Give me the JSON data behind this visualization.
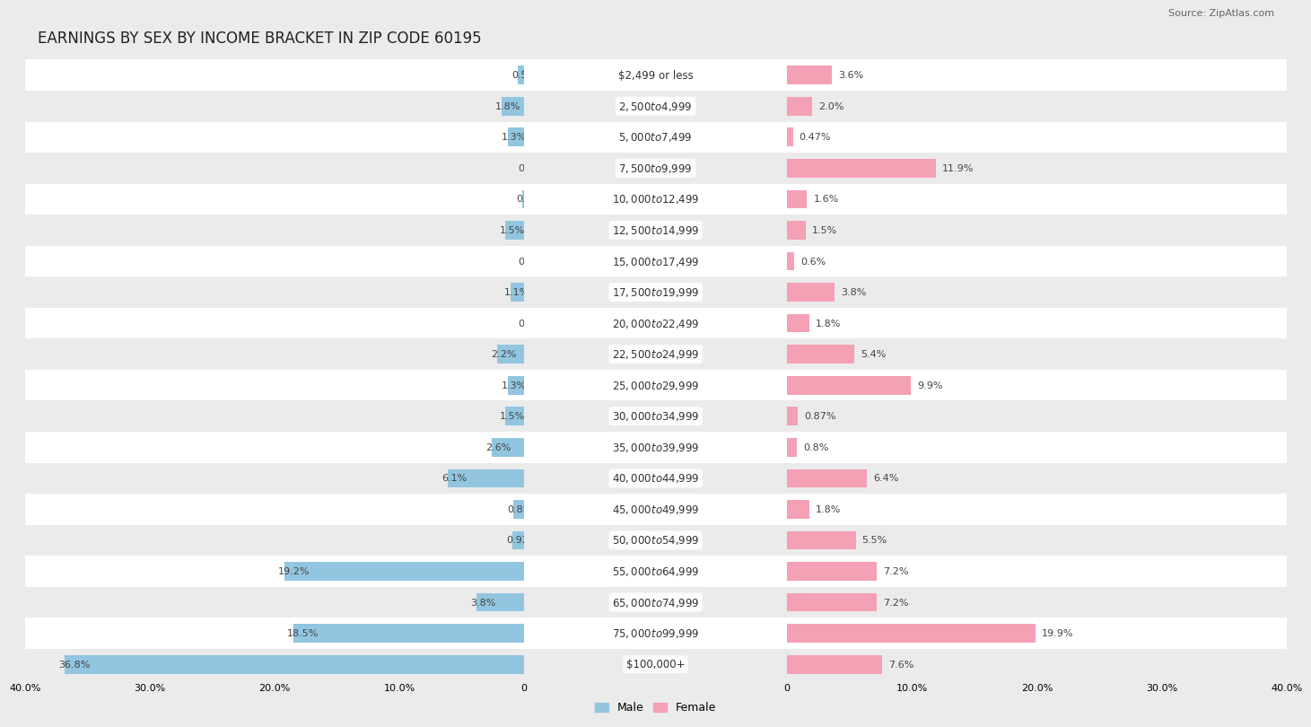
{
  "title": "EARNINGS BY SEX BY INCOME BRACKET IN ZIP CODE 60195",
  "source": "Source: ZipAtlas.com",
  "categories": [
    "$2,499 or less",
    "$2,500 to $4,999",
    "$5,000 to $7,499",
    "$7,500 to $9,999",
    "$10,000 to $12,499",
    "$12,500 to $14,999",
    "$15,000 to $17,499",
    "$17,500 to $19,999",
    "$20,000 to $22,499",
    "$22,500 to $24,999",
    "$25,000 to $29,999",
    "$30,000 to $34,999",
    "$35,000 to $39,999",
    "$40,000 to $44,999",
    "$45,000 to $49,999",
    "$50,000 to $54,999",
    "$55,000 to $64,999",
    "$65,000 to $74,999",
    "$75,000 to $99,999",
    "$100,000+"
  ],
  "male_values": [
    0.53,
    1.8,
    1.3,
    0.0,
    0.13,
    1.5,
    0.0,
    1.1,
    0.0,
    2.2,
    1.3,
    1.5,
    2.6,
    6.1,
    0.85,
    0.92,
    19.2,
    3.8,
    18.5,
    36.8
  ],
  "female_values": [
    3.6,
    2.0,
    0.47,
    11.9,
    1.6,
    1.5,
    0.6,
    3.8,
    1.8,
    5.4,
    9.9,
    0.87,
    0.8,
    6.4,
    1.8,
    5.5,
    7.2,
    7.2,
    19.9,
    7.6
  ],
  "male_color": "#92c5e0",
  "female_color": "#f4a0b5",
  "male_label": "Male",
  "female_label": "Female",
  "axis_max": 40.0,
  "bg_color": "#ebebeb",
  "row_color_even": "#ffffff",
  "row_color_odd": "#ebebeb",
  "title_fontsize": 12,
  "label_fontsize": 8.5,
  "tick_fontsize": 8,
  "source_fontsize": 8,
  "bar_height": 0.6
}
